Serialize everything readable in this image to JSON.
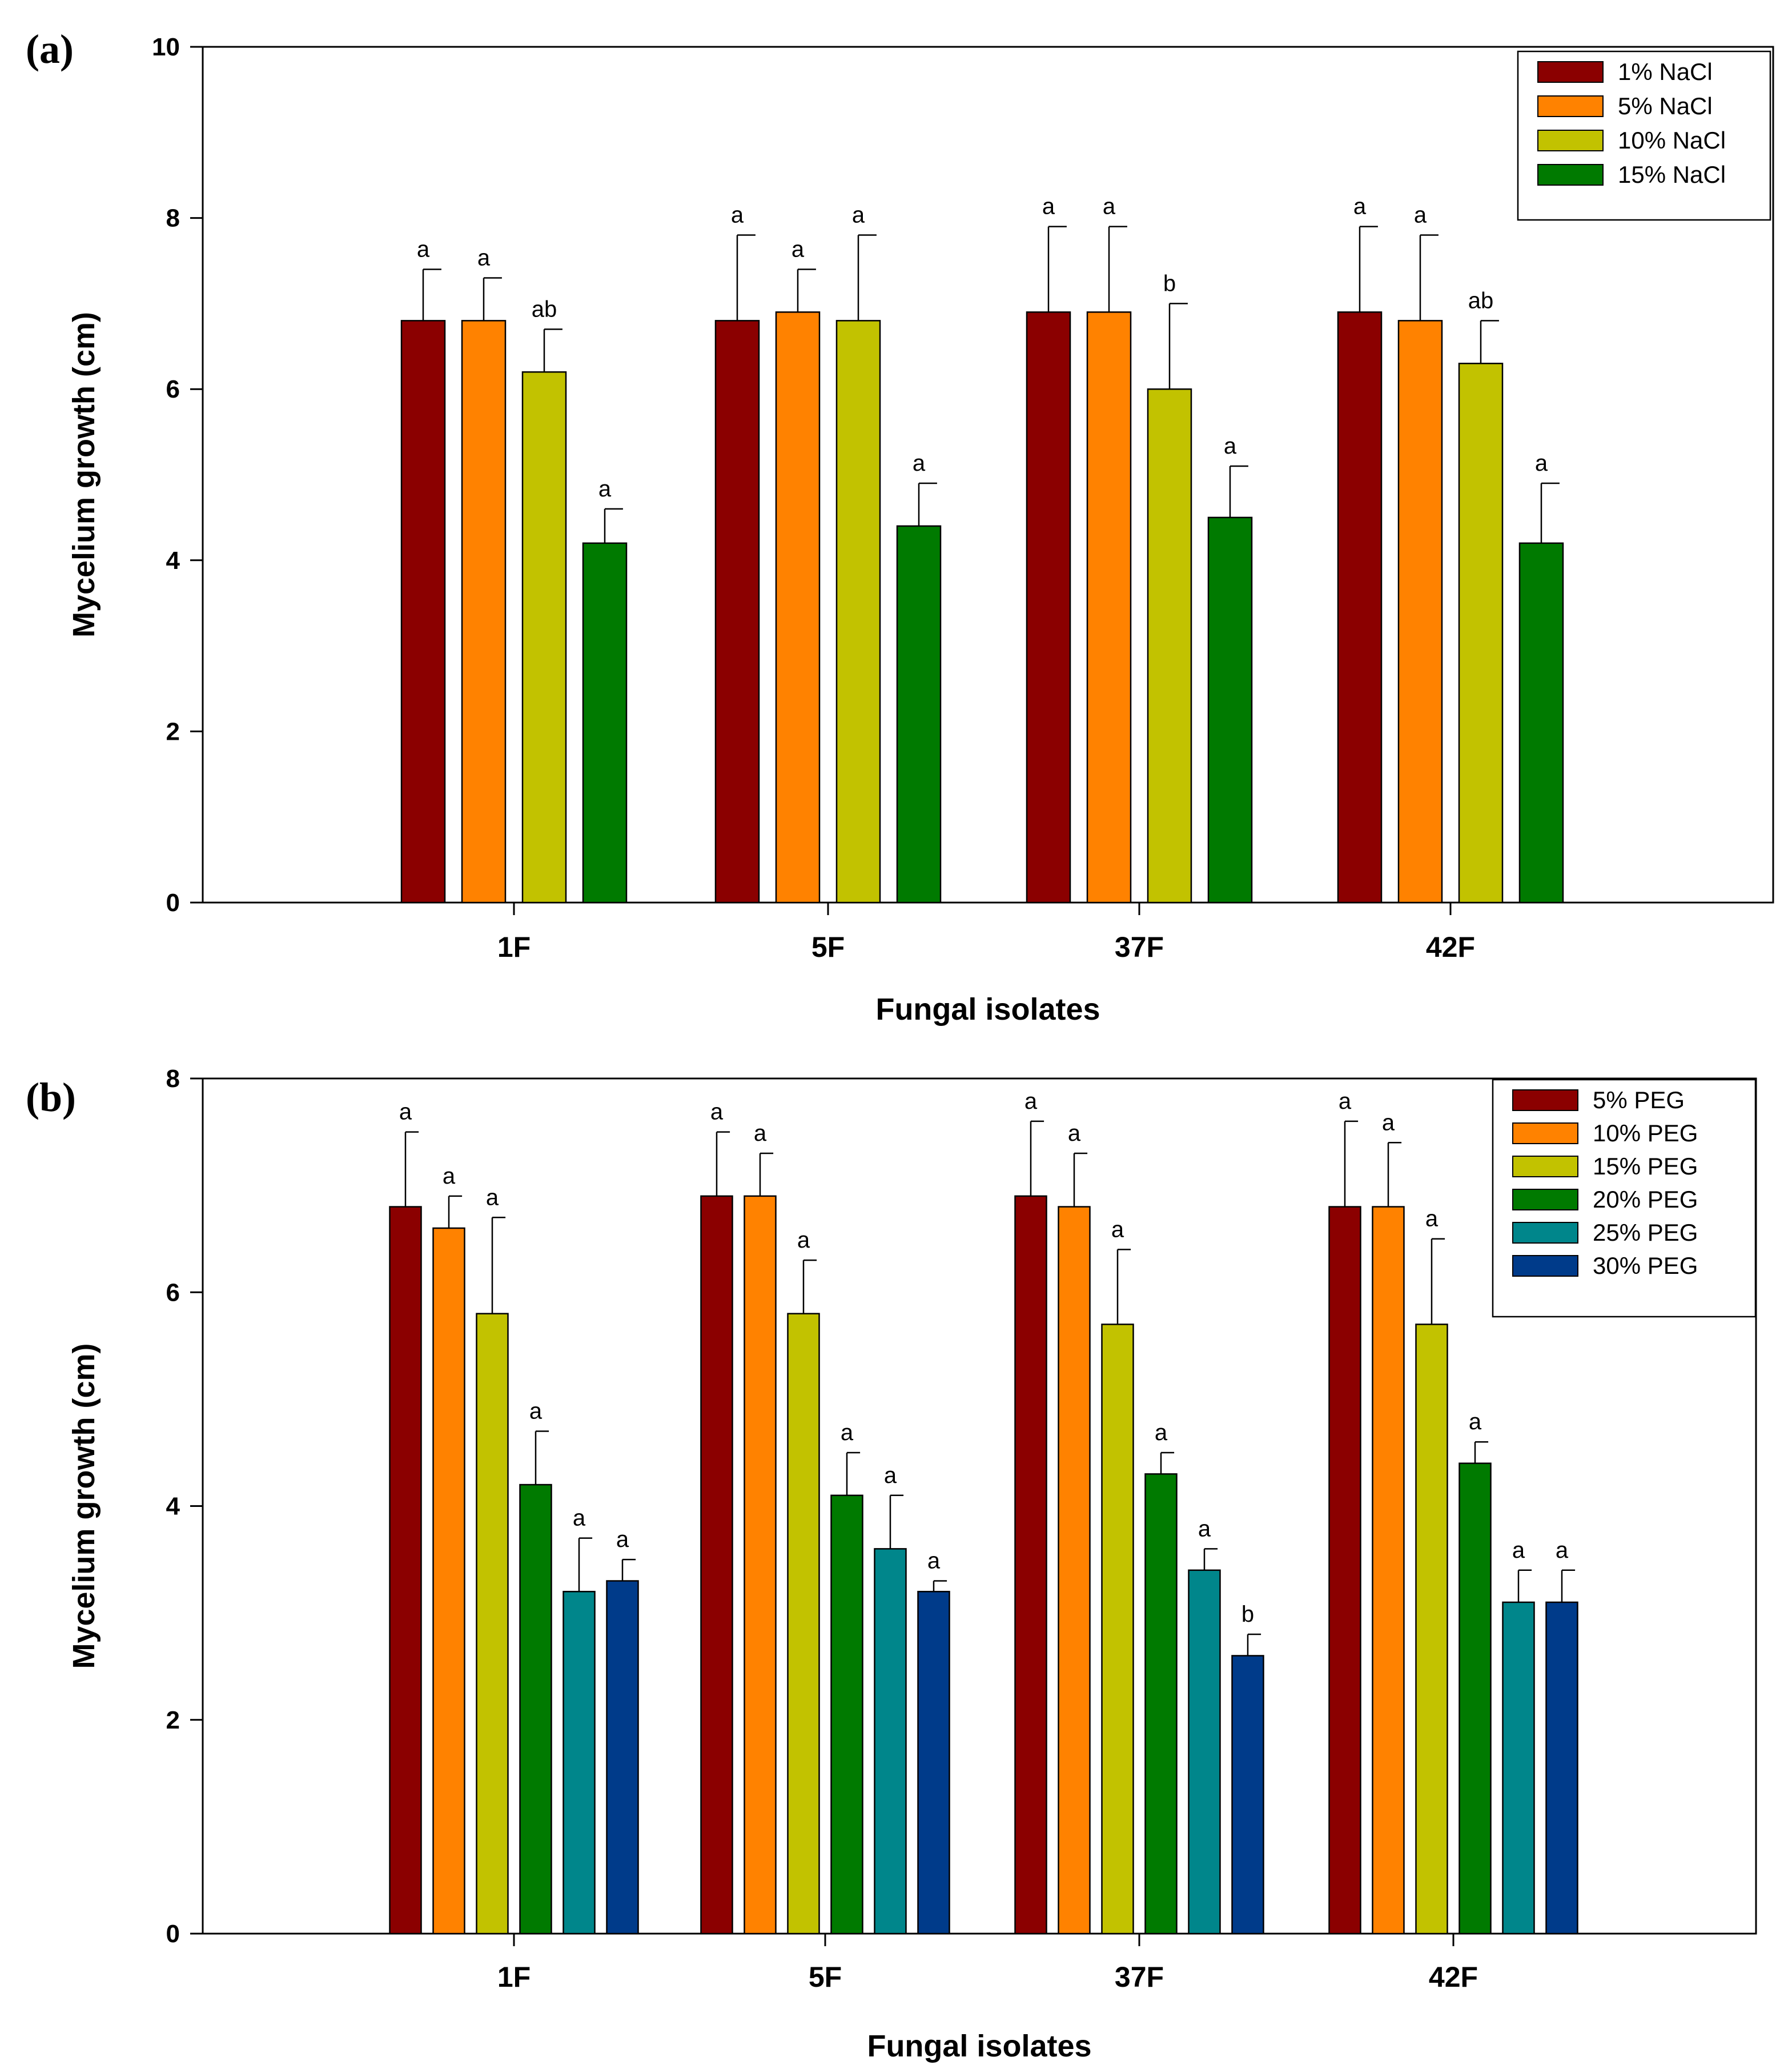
{
  "chart_data": [
    {
      "type": "bar",
      "panel_label": "(a)",
      "categories": [
        "1F",
        "5F",
        "37F",
        "42F"
      ],
      "xlabel": "Fungal isolates",
      "ylabel": "Mycelium growth (cm)",
      "ylim": [
        0,
        10
      ],
      "yticks": [
        "0",
        "2",
        "4",
        "6",
        "8",
        "10"
      ],
      "legend_position": "top-right",
      "series": [
        {
          "name": "1% NaCl",
          "color": "#8b0000",
          "values": [
            6.8,
            6.8,
            6.9,
            6.9
          ],
          "errors": [
            0.6,
            1.0,
            1.0,
            1.0
          ],
          "labels": [
            "a",
            "a",
            "a",
            "a"
          ]
        },
        {
          "name": "5% NaCl",
          "color": "#ff8200",
          "values": [
            6.8,
            6.9,
            6.9,
            6.8
          ],
          "errors": [
            0.5,
            0.5,
            1.0,
            1.0
          ],
          "labels": [
            "a",
            "a",
            "a",
            "a"
          ]
        },
        {
          "name": "10% NaCl",
          "color": "#c2c200",
          "values": [
            6.2,
            6.8,
            6.0,
            6.3
          ],
          "errors": [
            0.5,
            1.0,
            1.0,
            0.5
          ],
          "labels": [
            "ab",
            "a",
            "b",
            "ab"
          ]
        },
        {
          "name": "15% NaCl",
          "color": "#007a00",
          "values": [
            4.2,
            4.4,
            4.5,
            4.2
          ],
          "errors": [
            0.4,
            0.5,
            0.6,
            0.7
          ],
          "labels": [
            "a",
            "a",
            "a",
            "a"
          ]
        }
      ]
    },
    {
      "type": "bar",
      "panel_label": "(b)",
      "categories": [
        "1F",
        "5F",
        "37F",
        "42F"
      ],
      "xlabel": "Fungal isolates",
      "ylabel": "Mycelium growth (cm)",
      "ylim": [
        0,
        8
      ],
      "yticks": [
        "0",
        "2",
        "4",
        "6",
        "8"
      ],
      "legend_position": "top-right",
      "series": [
        {
          "name": "5% PEG",
          "color": "#8b0000",
          "values": [
            6.8,
            6.9,
            6.9,
            6.8
          ],
          "errors": [
            0.7,
            0.6,
            0.7,
            0.8
          ],
          "labels": [
            "a",
            "a",
            "a",
            "a"
          ]
        },
        {
          "name": "10% PEG",
          "color": "#ff8200",
          "values": [
            6.6,
            6.9,
            6.8,
            6.8
          ],
          "errors": [
            0.3,
            0.4,
            0.5,
            0.6
          ],
          "labels": [
            "a",
            "a",
            "a",
            "a"
          ]
        },
        {
          "name": "15% PEG",
          "color": "#c2c200",
          "values": [
            5.8,
            5.8,
            5.7,
            5.7
          ],
          "errors": [
            0.9,
            0.5,
            0.7,
            0.8
          ],
          "labels": [
            "a",
            "a",
            "a",
            "a"
          ]
        },
        {
          "name": "20% PEG",
          "color": "#007a00",
          "values": [
            4.2,
            4.1,
            4.3,
            4.4
          ],
          "errors": [
            0.5,
            0.4,
            0.2,
            0.2
          ],
          "labels": [
            "a",
            "a",
            "a",
            "a"
          ]
        },
        {
          "name": "25% PEG",
          "color": "#00868b",
          "values": [
            3.2,
            3.6,
            3.4,
            3.1
          ],
          "errors": [
            0.5,
            0.5,
            0.2,
            0.3
          ],
          "labels": [
            "a",
            "a",
            "a",
            "a"
          ]
        },
        {
          "name": "30% PEG",
          "color": "#003b8a",
          "values": [
            3.3,
            3.2,
            2.6,
            3.1
          ],
          "errors": [
            0.2,
            0.1,
            0.2,
            0.3
          ],
          "labels": [
            "a",
            "a",
            "b",
            "a"
          ]
        }
      ]
    }
  ]
}
